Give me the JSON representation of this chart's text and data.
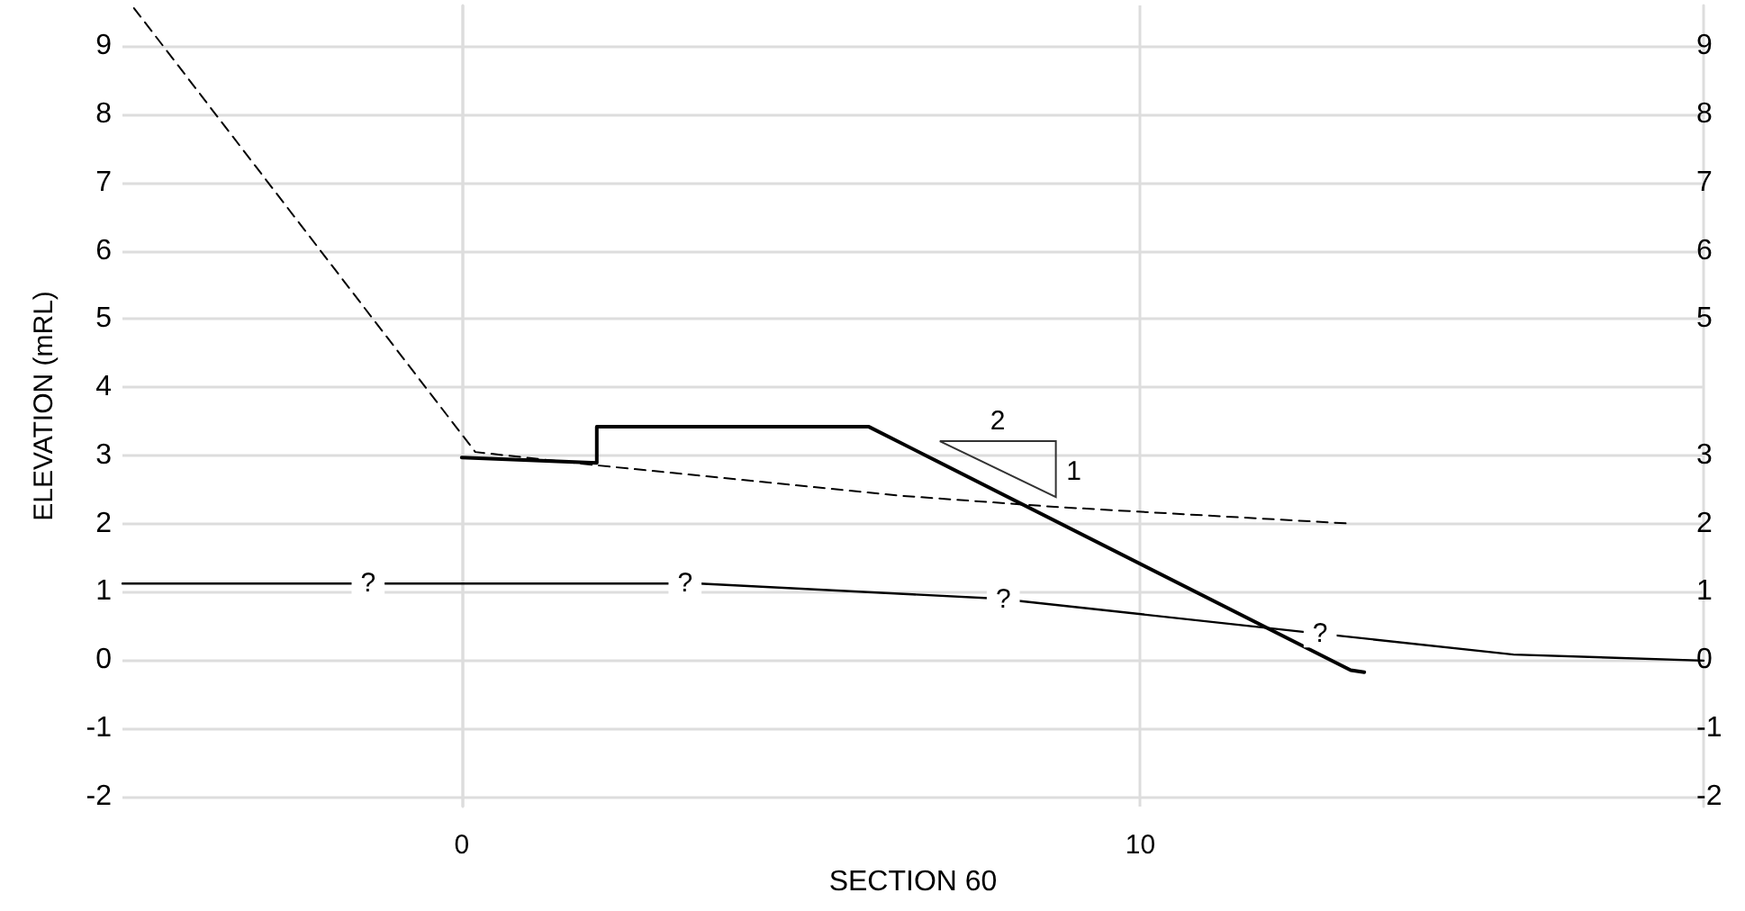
{
  "chart_data": {
    "type": "line",
    "xlabel": "SECTION 60",
    "ylabel": "ELEVATION (mRL)",
    "xlim": [
      -5,
      18.3
    ],
    "xticks": [
      0,
      10
    ],
    "ylim": [
      -2.15,
      9.6
    ],
    "yticks": [
      -2,
      -1,
      0,
      1,
      2,
      3,
      4,
      5,
      6,
      7,
      8,
      9
    ],
    "y2lim": [
      -2.15,
      9.6
    ],
    "y2ticks": [
      -2,
      -1,
      0,
      1,
      2,
      3,
      5,
      6,
      7,
      8,
      9
    ],
    "grid": true,
    "marker": "none",
    "series": [
      {
        "color": "#000000",
        "line_style": "dashed",
        "x": [
          -4.83,
          0.2,
          1.94,
          6.45,
          8.83,
          13.1
        ],
        "values": [
          9.56,
          3.05,
          2.86,
          2.41,
          2.24,
          2.0
        ]
      },
      {
        "color": "#000000",
        "line_style": "solid",
        "x": [
          0,
          1.99,
          1.99,
          6.0,
          13.1,
          13.3
        ],
        "values": [
          2.97,
          2.89,
          3.42,
          3.42,
          -0.15,
          -0.18
        ]
      },
      {
        "color": "#000000",
        "line_style": "solid",
        "x": [
          -5,
          3.5,
          7.9,
          12.7,
          15.5,
          18.3
        ],
        "values": [
          1.12,
          1.12,
          0.9,
          0.38,
          0.08,
          -0.01
        ]
      }
    ],
    "annotations": [
      {
        "text": "?",
        "x": -1.38,
        "y": 1.12
      },
      {
        "text": "?",
        "x": 3.29,
        "y": 1.12
      },
      {
        "text": "?",
        "x": 7.98,
        "y": 0.88
      },
      {
        "text": "?",
        "x": 12.65,
        "y": 0.38
      },
      {
        "text": "2",
        "x": 7.9,
        "y": 3.5
      },
      {
        "text": "1",
        "x": 9.02,
        "y": 2.76
      }
    ]
  }
}
